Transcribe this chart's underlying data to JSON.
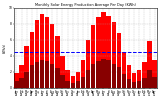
{
  "title": "Monthly Solar Energy Production Average Per Day (KWh)",
  "bar_color": "#ff0000",
  "dark_bar_color": "#880000",
  "background_color": "#ffffff",
  "grid_color": "#aaaaaa",
  "avg_line_color": "#0000ff",
  "avg_line_value": 4.5,
  "ylabel": "kWh/d",
  "categories": [
    "Jan\n08",
    "Feb\n08",
    "Mar\n08",
    "Apr\n08",
    "May\n08",
    "Jun\n08",
    "Jul\n08",
    "Aug\n08",
    "Sep\n08",
    "Oct\n08",
    "Nov\n08",
    "Dec\n08",
    "Jan\n09",
    "Feb\n09",
    "Mar\n09",
    "Apr\n09",
    "May\n09",
    "Jun\n09",
    "Jul\n09",
    "Aug\n09",
    "Sep\n09",
    "Oct\n09",
    "Nov\n09",
    "Dec\n09",
    "Jan\n10",
    "Feb\n10",
    "Mar\n10",
    "Apr\n10"
  ],
  "values": [
    1.8,
    2.8,
    5.2,
    7.0,
    8.5,
    9.2,
    8.8,
    8.0,
    6.5,
    4.0,
    2.2,
    1.5,
    2.0,
    3.5,
    6.0,
    7.8,
    8.8,
    9.5,
    9.0,
    8.2,
    6.8,
    4.5,
    2.8,
    1.8,
    2.2,
    3.2,
    5.8,
    3.5
  ],
  "small_values": [
    0.8,
    1.2,
    2.0,
    2.8,
    3.2,
    3.5,
    3.4,
    3.0,
    2.5,
    1.6,
    0.9,
    0.6,
    0.8,
    1.4,
    2.2,
    3.0,
    3.4,
    3.6,
    3.5,
    3.0,
    2.6,
    1.7,
    1.1,
    0.7,
    0.8,
    1.2,
    2.2,
    1.3
  ],
  "ylim": [
    0,
    10
  ],
  "yticks": [
    0,
    2,
    4,
    6,
    8,
    10
  ],
  "ytick_labels": [
    "0",
    "2",
    "4",
    "6",
    "8",
    "10"
  ]
}
